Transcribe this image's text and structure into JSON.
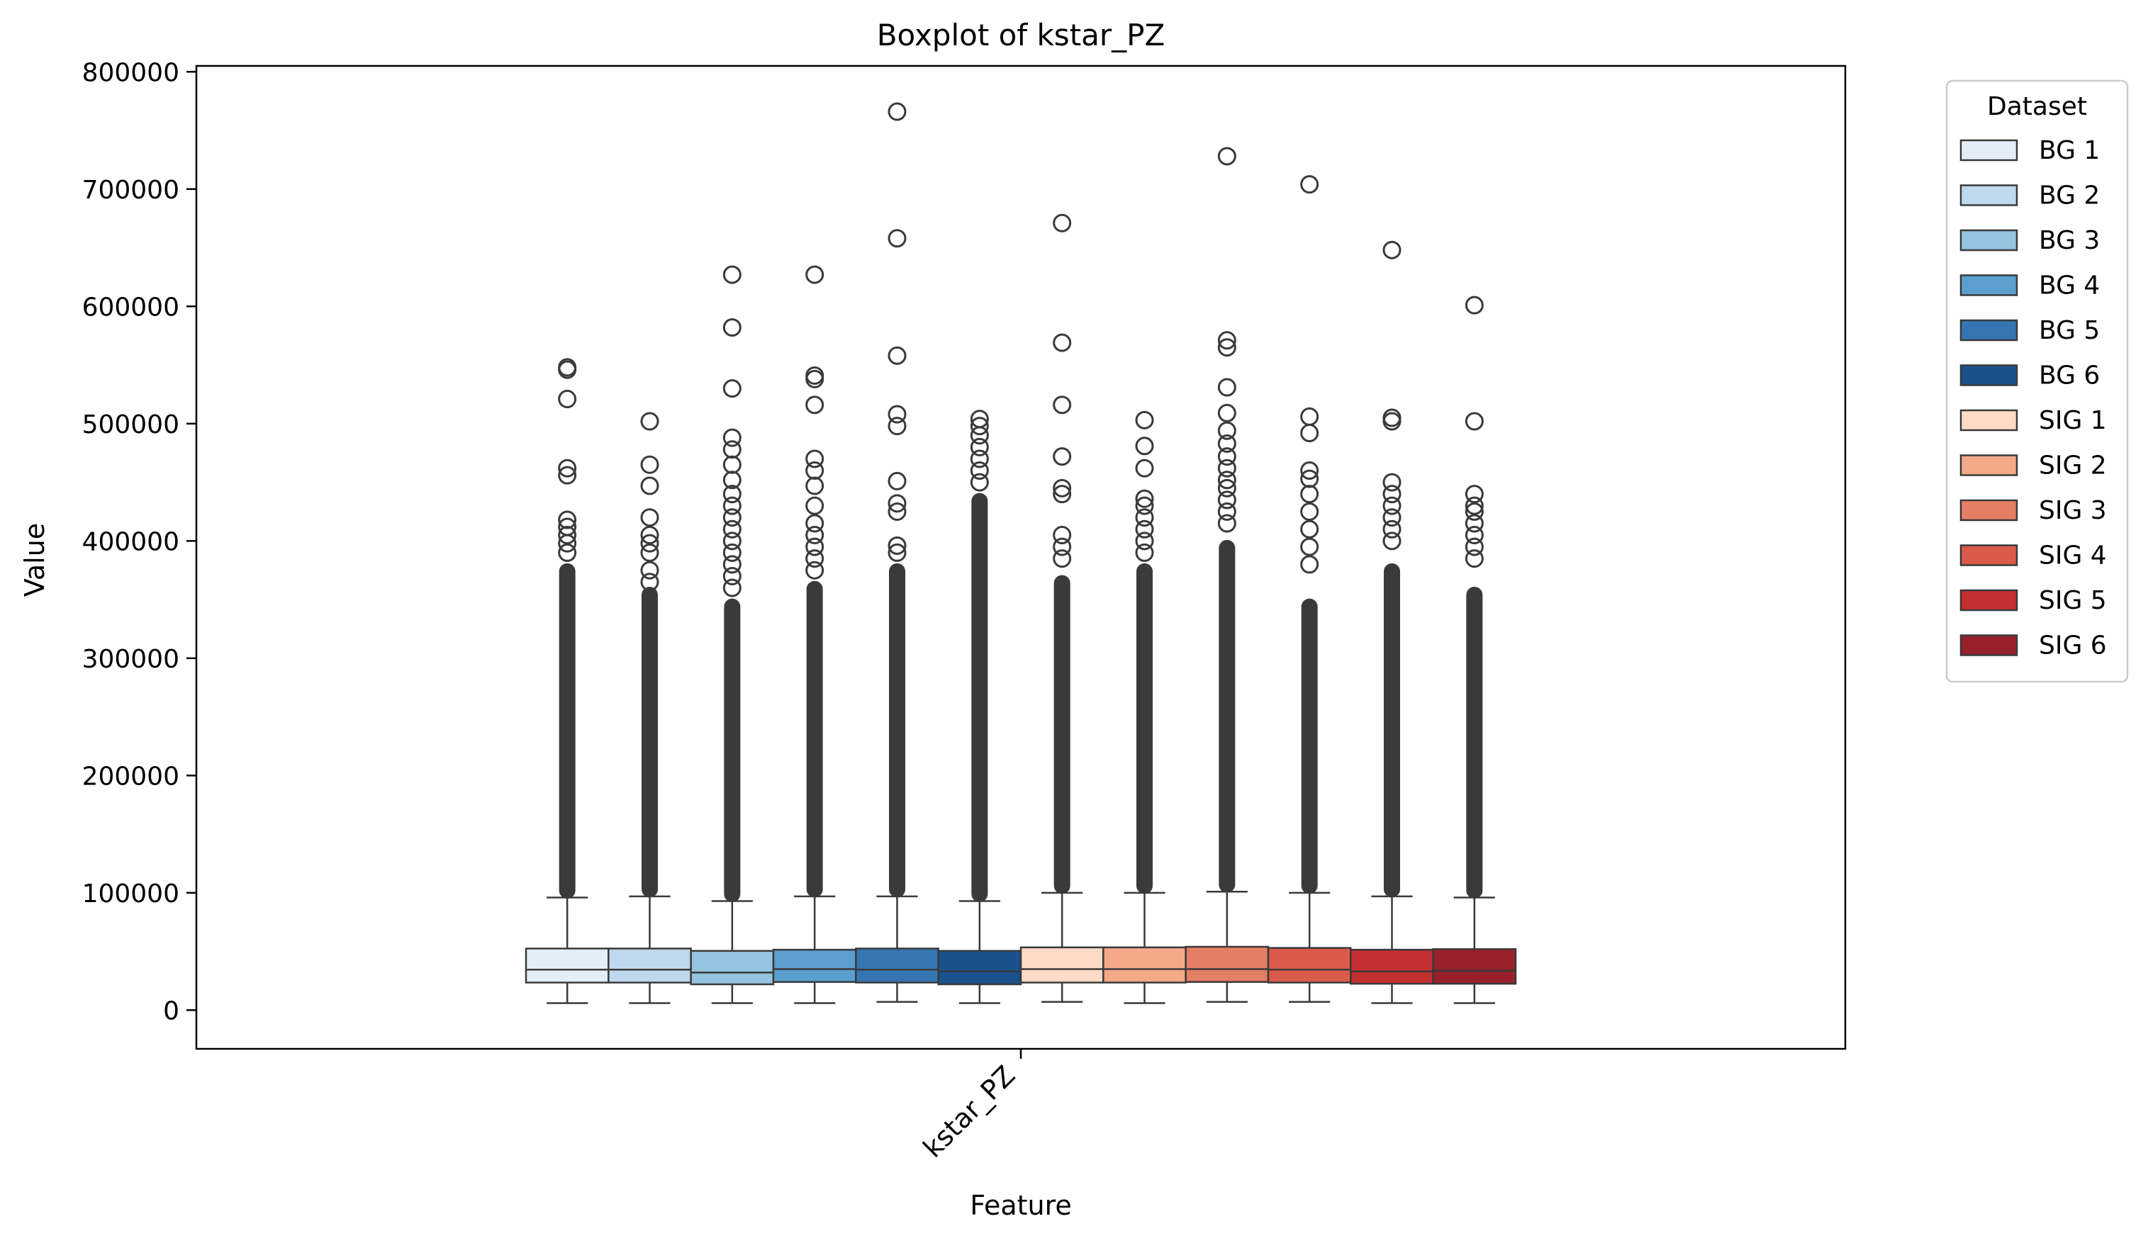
{
  "chart_data": {
    "type": "box",
    "title": "Boxplot of kstar_PZ",
    "xlabel": "Feature",
    "ylabel": "Value",
    "categories": [
      "kstar_PZ"
    ],
    "ylim": [
      -33000,
      805000
    ],
    "yticks": [
      0,
      100000,
      200000,
      300000,
      400000,
      500000,
      600000,
      700000,
      800000
    ],
    "legend": {
      "title": "Dataset",
      "placement": "outside-top-right"
    },
    "grid": false,
    "series": [
      {
        "name": "BG 1",
        "color": "#e3eef9",
        "whisker_low": 6000,
        "q1": 23500,
        "median": 34500,
        "q3": 52500,
        "whisker_high": 96000,
        "dense_top": 380000,
        "outliers": [
          548000,
          546000,
          521000,
          462000,
          456000,
          418000,
          412000,
          405000,
          398000,
          390000
        ]
      },
      {
        "name": "BG 2",
        "color": "#c0d8ed",
        "whisker_low": 6000,
        "q1": 23500,
        "median": 34500,
        "q3": 52500,
        "whisker_high": 97000,
        "dense_top": 360000,
        "outliers": [
          502000,
          465000,
          447000,
          420000,
          405000,
          398000,
          390000,
          375000,
          365000
        ]
      },
      {
        "name": "BG 3",
        "color": "#94c4df",
        "whisker_low": 6000,
        "q1": 22000,
        "median": 32000,
        "q3": 50500,
        "whisker_high": 93000,
        "dense_top": 350000,
        "outliers": [
          627000,
          582000,
          530000,
          488000,
          478000,
          465000,
          452000,
          440000,
          430000,
          420000,
          410000,
          400000,
          390000,
          380000,
          370000,
          360000
        ]
      },
      {
        "name": "BG 4",
        "color": "#5a9fce",
        "whisker_low": 6000,
        "q1": 24000,
        "median": 35000,
        "q3": 51500,
        "whisker_high": 97000,
        "dense_top": 365000,
        "outliers": [
          627000,
          541000,
          538000,
          516000,
          470000,
          460000,
          447000,
          430000,
          415000,
          405000,
          395000,
          385000,
          375000
        ]
      },
      {
        "name": "BG 5",
        "color": "#3575b2",
        "whisker_low": 7000,
        "q1": 23500,
        "median": 34500,
        "q3": 52500,
        "whisker_high": 97000,
        "dense_top": 380000,
        "outliers": [
          766000,
          658000,
          558000,
          508000,
          498000,
          451000,
          432000,
          425000,
          396000,
          390000
        ]
      },
      {
        "name": "BG 6",
        "color": "#19518d",
        "whisker_low": 6000,
        "q1": 22000,
        "median": 33000,
        "q3": 50500,
        "whisker_high": 93000,
        "dense_top": 440000,
        "outliers": [
          504000,
          498000,
          490000,
          480000,
          470000,
          460000,
          450000
        ]
      },
      {
        "name": "SIG 1",
        "color": "#fddbc7",
        "whisker_low": 7000,
        "q1": 23500,
        "median": 35000,
        "q3": 53500,
        "whisker_high": 100000,
        "dense_top": 370000,
        "outliers": [
          671000,
          569000,
          516000,
          472000,
          445000,
          440000,
          405000,
          395000,
          385000
        ]
      },
      {
        "name": "SIG 2",
        "color": "#f4a989",
        "whisker_low": 6000,
        "q1": 23500,
        "median": 35000,
        "q3": 53500,
        "whisker_high": 100000,
        "dense_top": 380000,
        "outliers": [
          503000,
          481000,
          462000,
          436000,
          430000,
          420000,
          410000,
          400000,
          390000
        ]
      },
      {
        "name": "SIG 3",
        "color": "#e47e65",
        "whisker_low": 7000,
        "q1": 24000,
        "median": 35000,
        "q3": 54000,
        "whisker_high": 101000,
        "dense_top": 400000,
        "outliers": [
          728000,
          571000,
          565000,
          531000,
          509000,
          494000,
          483000,
          472000,
          462000,
          452000,
          445000,
          435000,
          425000,
          415000
        ]
      },
      {
        "name": "SIG 4",
        "color": "#db5b4b",
        "whisker_low": 7000,
        "q1": 23500,
        "median": 34500,
        "q3": 53000,
        "whisker_high": 100000,
        "dense_top": 350000,
        "outliers": [
          704000,
          506000,
          492000,
          460000,
          453000,
          440000,
          425000,
          410000,
          395000,
          380000
        ]
      },
      {
        "name": "SIG 5",
        "color": "#c42f2f",
        "whisker_low": 6000,
        "q1": 22500,
        "median": 33000,
        "q3": 51500,
        "whisker_high": 97000,
        "dense_top": 380000,
        "outliers": [
          648000,
          505000,
          502000,
          450000,
          440000,
          430000,
          420000,
          410000,
          400000
        ]
      },
      {
        "name": "SIG 6",
        "color": "#98202a",
        "whisker_low": 6000,
        "q1": 22500,
        "median": 33500,
        "q3": 52000,
        "whisker_high": 96000,
        "dense_top": 360000,
        "outliers": [
          601000,
          502000,
          440000,
          430000,
          425000,
          415000,
          405000,
          395000,
          385000
        ]
      }
    ]
  }
}
